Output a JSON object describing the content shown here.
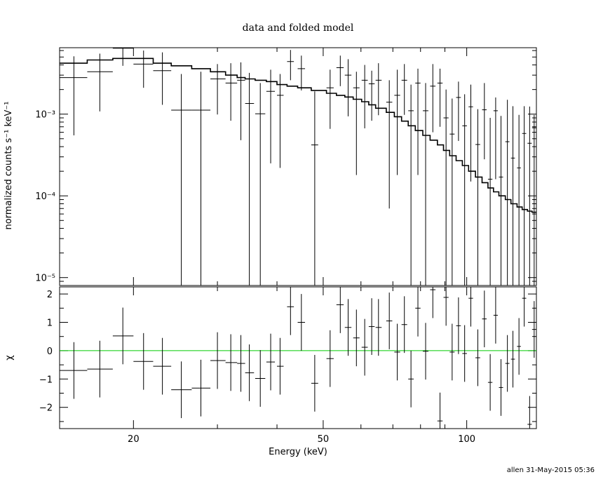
{
  "footer": "allen 31-May-2015 05:36",
  "chart_data": {
    "type": "line",
    "title": "data and folded model",
    "xlabel": "Energy (keV)",
    "x_scale": "log",
    "xlim": [
      14,
      140
    ],
    "x_ticks": [
      {
        "value": 20,
        "label": "20"
      },
      {
        "value": 50,
        "label": "50"
      },
      {
        "value": 100,
        "label": "100"
      }
    ],
    "panels": [
      {
        "name": "spectrum",
        "ylabel": "normalized counts s⁻¹ keV⁻¹",
        "y_scale": "log",
        "ylim": [
          8e-06,
          0.0065
        ],
        "y_ticks": [
          {
            "value": 1e-05,
            "label": "10⁻⁵"
          },
          {
            "value": 0.0001,
            "label": "10⁻⁴"
          },
          {
            "value": 0.001,
            "label": "10⁻³"
          }
        ],
        "data": [
          {
            "x": 15.0,
            "xlo": 14.0,
            "xhi": 16.0,
            "y": 0.0028,
            "ylo": 0.00055,
            "yhi": 0.0051
          },
          {
            "x": 17.0,
            "xlo": 16.0,
            "xhi": 18.1,
            "y": 0.0033,
            "ylo": 0.00108,
            "yhi": 0.0055
          },
          {
            "x": 19.0,
            "xlo": 18.1,
            "xhi": 20.0,
            "y": 0.0064,
            "ylo": 0.0039,
            "yhi": 0.0085
          },
          {
            "x": 21.0,
            "xlo": 20.0,
            "xhi": 22.0,
            "y": 0.0041,
            "ylo": 0.0021,
            "yhi": 0.006
          },
          {
            "x": 23.0,
            "xlo": 22.0,
            "xhi": 24.0,
            "y": 0.0034,
            "ylo": 0.0013,
            "yhi": 0.0057
          },
          {
            "x": 25.2,
            "xlo": 24.0,
            "xhi": 26.5,
            "y": 0.00112,
            "ylo": 1e-06,
            "yhi": 0.0031
          },
          {
            "x": 27.7,
            "xlo": 26.5,
            "xhi": 29.0,
            "y": 0.00112,
            "ylo": 1e-06,
            "yhi": 0.0033
          },
          {
            "x": 30.0,
            "xlo": 29.0,
            "xhi": 31.2,
            "y": 0.0027,
            "ylo": 0.00099,
            "yhi": 0.0041
          },
          {
            "x": 32.0,
            "xlo": 31.2,
            "xhi": 33.0,
            "y": 0.0024,
            "ylo": 0.00083,
            "yhi": 0.0042
          },
          {
            "x": 33.6,
            "xlo": 33.0,
            "xhi": 34.3,
            "y": 0.0026,
            "ylo": 0.00048,
            "yhi": 0.0043
          },
          {
            "x": 35.0,
            "xlo": 34.3,
            "xhi": 35.8,
            "y": 0.00135,
            "ylo": 1e-06,
            "yhi": 0.0032
          },
          {
            "x": 36.9,
            "xlo": 36.0,
            "xhi": 37.8,
            "y": 0.00101,
            "ylo": 1e-06,
            "yhi": 0.0024
          },
          {
            "x": 38.8,
            "xlo": 38.0,
            "xhi": 39.6,
            "y": 0.0019,
            "ylo": 0.00025,
            "yhi": 0.0035
          },
          {
            "x": 40.6,
            "xlo": 40.0,
            "xhi": 41.3,
            "y": 0.0017,
            "ylo": 0.00022,
            "yhi": 0.0031
          },
          {
            "x": 42.7,
            "xlo": 42.0,
            "xhi": 43.4,
            "y": 0.0044,
            "ylo": 0.0026,
            "yhi": 0.0061
          },
          {
            "x": 45.0,
            "xlo": 44.2,
            "xhi": 45.8,
            "y": 0.0036,
            "ylo": 0.00195,
            "yhi": 0.0052
          },
          {
            "x": 48.0,
            "xlo": 47.2,
            "xhi": 48.8,
            "y": 0.00042,
            "ylo": 1e-06,
            "yhi": 0.0019
          },
          {
            "x": 51.7,
            "xlo": 50.8,
            "xhi": 52.6,
            "y": 0.0021,
            "ylo": 0.00066,
            "yhi": 0.0035
          },
          {
            "x": 54.3,
            "xlo": 53.3,
            "xhi": 55.2,
            "y": 0.0037,
            "ylo": 0.0022,
            "yhi": 0.0052
          },
          {
            "x": 56.4,
            "xlo": 55.5,
            "xhi": 57.3,
            "y": 0.003,
            "ylo": 0.00094,
            "yhi": 0.0047
          },
          {
            "x": 58.7,
            "xlo": 57.8,
            "xhi": 59.6,
            "y": 0.0021,
            "ylo": 0.00018,
            "yhi": 0.0033
          },
          {
            "x": 61.1,
            "xlo": 60.2,
            "xhi": 62.0,
            "y": 0.0026,
            "ylo": 0.00067,
            "yhi": 0.004
          },
          {
            "x": 63.2,
            "xlo": 62.3,
            "xhi": 64.1,
            "y": 0.00235,
            "ylo": 0.00083,
            "yhi": 0.0034
          },
          {
            "x": 65.3,
            "xlo": 64.4,
            "xhi": 66.3,
            "y": 0.0026,
            "ylo": 0.00097,
            "yhi": 0.0042
          },
          {
            "x": 68.8,
            "xlo": 67.8,
            "xhi": 69.8,
            "y": 0.0014,
            "ylo": 7e-05,
            "yhi": 0.0026
          },
          {
            "x": 71.5,
            "xlo": 70.5,
            "xhi": 72.5,
            "y": 0.0017,
            "ylo": 0.00018,
            "yhi": 0.0035
          },
          {
            "x": 74.0,
            "xlo": 73.0,
            "xhi": 75.0,
            "y": 0.0026,
            "ylo": 0.00098,
            "yhi": 0.0041
          },
          {
            "x": 76.4,
            "xlo": 75.4,
            "xhi": 77.4,
            "y": 0.0011,
            "ylo": 1e-06,
            "yhi": 0.0023
          },
          {
            "x": 79.0,
            "xlo": 78.0,
            "xhi": 80.0,
            "y": 0.0024,
            "ylo": 0.00018,
            "yhi": 0.0036
          },
          {
            "x": 82.0,
            "xlo": 80.9,
            "xhi": 83.1,
            "y": 0.0011,
            "ylo": 1e-06,
            "yhi": 0.0024
          },
          {
            "x": 84.9,
            "xlo": 83.8,
            "xhi": 86.0,
            "y": 0.0022,
            "ylo": 0.0006,
            "yhi": 0.0041
          },
          {
            "x": 87.9,
            "xlo": 86.8,
            "xhi": 89.0,
            "y": 0.0024,
            "ylo": 0.0007,
            "yhi": 0.0036
          },
          {
            "x": 90.5,
            "xlo": 89.4,
            "xhi": 91.6,
            "y": 0.0009,
            "ylo": 1e-06,
            "yhi": 0.002
          },
          {
            "x": 93.2,
            "xlo": 92.1,
            "xhi": 94.3,
            "y": 0.00057,
            "ylo": 1e-06,
            "yhi": 0.00155
          },
          {
            "x": 96.1,
            "xlo": 95.0,
            "xhi": 97.2,
            "y": 0.0016,
            "ylo": 0.00047,
            "yhi": 0.0025
          },
          {
            "x": 99.0,
            "xlo": 97.9,
            "xhi": 100.1,
            "y": 0.00072,
            "ylo": 1e-06,
            "yhi": 0.00175
          },
          {
            "x": 102.0,
            "xlo": 100.9,
            "xhi": 103.1,
            "y": 0.00123,
            "ylo": 0.00015,
            "yhi": 0.0023
          },
          {
            "x": 105.5,
            "xlo": 104.3,
            "xhi": 106.7,
            "y": 0.000425,
            "ylo": 1e-06,
            "yhi": 0.00115
          },
          {
            "x": 108.9,
            "xlo": 107.7,
            "xhi": 110.1,
            "y": 0.00113,
            "ylo": 0.00028,
            "yhi": 0.0024
          },
          {
            "x": 112.0,
            "xlo": 110.8,
            "xhi": 113.2,
            "y": 0.00016,
            "ylo": 1e-06,
            "yhi": 0.0009
          },
          {
            "x": 115.0,
            "xlo": 113.8,
            "xhi": 116.2,
            "y": 0.0011,
            "ylo": 0.00016,
            "yhi": 0.0016
          },
          {
            "x": 118.0,
            "xlo": 116.8,
            "xhi": 119.2,
            "y": 0.00017,
            "ylo": 1e-06,
            "yhi": 0.00095
          },
          {
            "x": 121.7,
            "xlo": 120.5,
            "xhi": 122.9,
            "y": 0.00046,
            "ylo": 1e-06,
            "yhi": 0.0015
          },
          {
            "x": 125.0,
            "xlo": 123.8,
            "xhi": 126.2,
            "y": 0.00029,
            "ylo": 1e-06,
            "yhi": 0.00125
          },
          {
            "x": 128.7,
            "xlo": 127.5,
            "xhi": 129.9,
            "y": 0.00022,
            "ylo": 1e-06,
            "yhi": 0.00098
          },
          {
            "x": 132.0,
            "xlo": 130.7,
            "xhi": 133.3,
            "y": 0.00058,
            "ylo": 1e-06,
            "yhi": 0.00125
          },
          {
            "x": 135.5,
            "xlo": 134.1,
            "xhi": 136.9,
            "y": 0.00044,
            "ylo": 1e-06,
            "yhi": 0.00124
          },
          {
            "x": 138.5,
            "xlo": 137.1,
            "xhi": 139.9,
            "y": 0.00068,
            "ylo": 1e-06,
            "yhi": 0.00098
          }
        ],
        "model": {
          "name": "folded model",
          "edges": [
            14.0,
            16.0,
            18.1,
            20.0,
            22.0,
            24.0,
            26.5,
            29.0,
            31.2,
            33.0,
            34.3,
            36.0,
            38.0,
            40.0,
            42.0,
            44.2,
            47.2,
            50.8,
            53.3,
            55.5,
            57.8,
            60.2,
            62.3,
            64.4,
            67.8,
            70.5,
            73.0,
            75.4,
            78.0,
            80.9,
            83.8,
            86.8,
            89.4,
            92.1,
            95.0,
            97.9,
            100.9,
            104.3,
            107.7,
            110.8,
            113.8,
            116.8,
            120.5,
            123.8,
            127.5,
            130.7,
            134.1,
            137.1,
            140.0
          ],
          "values": [
            0.0042,
            0.0046,
            0.0048,
            0.0048,
            0.0042,
            0.0039,
            0.0036,
            0.0033,
            0.003,
            0.0028,
            0.0027,
            0.0026,
            0.0025,
            0.0023,
            0.0022,
            0.0021,
            0.00195,
            0.0018,
            0.0017,
            0.00162,
            0.00152,
            0.00142,
            0.0013,
            0.00118,
            0.00105,
            0.00093,
            0.00082,
            0.00072,
            0.00063,
            0.00055,
            0.00048,
            0.00042,
            0.00036,
            0.00031,
            0.00027,
            0.000235,
            0.0002,
            0.00017,
            0.000145,
            0.000125,
            0.000112,
            0.0001,
            9e-05,
            8e-05,
            7.3e-05,
            6.8e-05,
            6.5e-05,
            6.3e-05
          ]
        }
      },
      {
        "name": "residuals",
        "ylabel": "χ",
        "y_scale": "linear",
        "ylim": [
          -2.75,
          2.25
        ],
        "y_ticks": [
          {
            "value": -2,
            "label": "−2"
          },
          {
            "value": -1,
            "label": "−1"
          },
          {
            "value": 0,
            "label": "0"
          },
          {
            "value": 1,
            "label": "1"
          },
          {
            "value": 2,
            "label": "2"
          }
        ],
        "zero_line_color": "#00cc00",
        "data": [
          {
            "x": 15.0,
            "xlo": 14.0,
            "xhi": 16.0,
            "y": -0.7
          },
          {
            "x": 17.0,
            "xlo": 16.0,
            "xhi": 18.1,
            "y": -0.65
          },
          {
            "x": 19.0,
            "xlo": 18.1,
            "xhi": 20.0,
            "y": 0.52
          },
          {
            "x": 21.0,
            "xlo": 20.0,
            "xhi": 22.0,
            "y": -0.38
          },
          {
            "x": 23.0,
            "xlo": 22.0,
            "xhi": 24.0,
            "y": -0.55
          },
          {
            "x": 25.2,
            "xlo": 24.0,
            "xhi": 26.5,
            "y": -1.38
          },
          {
            "x": 27.7,
            "xlo": 26.5,
            "xhi": 29.0,
            "y": -1.32
          },
          {
            "x": 30.0,
            "xlo": 29.0,
            "xhi": 31.2,
            "y": -0.35
          },
          {
            "x": 32.0,
            "xlo": 31.2,
            "xhi": 33.0,
            "y": -0.42
          },
          {
            "x": 33.6,
            "xlo": 33.0,
            "xhi": 34.3,
            "y": -0.45
          },
          {
            "x": 35.0,
            "xlo": 34.3,
            "xhi": 35.8,
            "y": -0.78
          },
          {
            "x": 36.9,
            "xlo": 36.0,
            "xhi": 37.8,
            "y": -0.98
          },
          {
            "x": 38.8,
            "xlo": 38.0,
            "xhi": 39.6,
            "y": -0.4
          },
          {
            "x": 40.6,
            "xlo": 40.0,
            "xhi": 41.3,
            "y": -0.55
          },
          {
            "x": 42.7,
            "xlo": 42.0,
            "xhi": 43.4,
            "y": 1.55
          },
          {
            "x": 45.0,
            "xlo": 44.2,
            "xhi": 45.8,
            "y": 1.0
          },
          {
            "x": 48.0,
            "xlo": 47.2,
            "xhi": 48.8,
            "y": -1.15
          },
          {
            "x": 51.7,
            "xlo": 50.8,
            "xhi": 52.6,
            "y": -0.28
          },
          {
            "x": 54.3,
            "xlo": 53.3,
            "xhi": 55.2,
            "y": 1.62
          },
          {
            "x": 56.4,
            "xlo": 55.5,
            "xhi": 57.3,
            "y": 0.82
          },
          {
            "x": 58.7,
            "xlo": 57.8,
            "xhi": 59.6,
            "y": 0.45
          },
          {
            "x": 61.1,
            "xlo": 60.2,
            "xhi": 62.0,
            "y": 0.12
          },
          {
            "x": 63.2,
            "xlo": 62.3,
            "xhi": 64.1,
            "y": 0.85
          },
          {
            "x": 65.3,
            "xlo": 64.4,
            "xhi": 66.3,
            "y": 0.82
          },
          {
            "x": 68.8,
            "xlo": 67.8,
            "xhi": 69.8,
            "y": 1.05
          },
          {
            "x": 71.5,
            "xlo": 70.5,
            "xhi": 72.5,
            "y": -0.05
          },
          {
            "x": 74.0,
            "xlo": 73.0,
            "xhi": 75.0,
            "y": 0.92
          },
          {
            "x": 76.4,
            "xlo": 75.4,
            "xhi": 77.4,
            "y": -1.0
          },
          {
            "x": 79.0,
            "xlo": 78.0,
            "xhi": 80.0,
            "y": 1.5
          },
          {
            "x": 82.0,
            "xlo": 80.9,
            "xhi": 83.1,
            "y": -0.02
          },
          {
            "x": 84.9,
            "xlo": 83.8,
            "xhi": 86.0,
            "y": 2.15
          },
          {
            "x": 87.9,
            "xlo": 86.8,
            "xhi": 89.0,
            "y": -2.48
          },
          {
            "x": 90.5,
            "xlo": 89.4,
            "xhi": 91.6,
            "y": 1.88
          },
          {
            "x": 93.2,
            "xlo": 92.1,
            "xhi": 94.3,
            "y": -0.05
          },
          {
            "x": 96.1,
            "xlo": 95.0,
            "xhi": 97.2,
            "y": 0.88
          },
          {
            "x": 99.0,
            "xlo": 97.9,
            "xhi": 100.1,
            "y": -0.1
          },
          {
            "x": 102.0,
            "xlo": 100.9,
            "xhi": 103.1,
            "y": 1.85
          },
          {
            "x": 105.5,
            "xlo": 104.3,
            "xhi": 106.7,
            "y": -0.25
          },
          {
            "x": 108.9,
            "xlo": 107.7,
            "xhi": 110.1,
            "y": 1.12
          },
          {
            "x": 112.0,
            "xlo": 110.8,
            "xhi": 113.2,
            "y": -1.12
          },
          {
            "x": 115.0,
            "xlo": 113.8,
            "xhi": 116.2,
            "y": 1.25
          },
          {
            "x": 118.0,
            "xlo": 116.8,
            "xhi": 119.2,
            "y": -1.3
          },
          {
            "x": 121.7,
            "xlo": 120.5,
            "xhi": 122.9,
            "y": -0.45
          },
          {
            "x": 125.0,
            "xlo": 123.8,
            "xhi": 126.2,
            "y": -0.3
          },
          {
            "x": 128.7,
            "xlo": 127.5,
            "xhi": 129.9,
            "y": 0.15
          },
          {
            "x": 132.0,
            "xlo": 130.7,
            "xhi": 133.3,
            "y": 1.85
          },
          {
            "x": 135.5,
            "xlo": 134.1,
            "xhi": 136.9,
            "y": -2.6
          },
          {
            "x": 138.5,
            "xlo": 137.1,
            "xhi": 139.9,
            "y": 0.75
          }
        ]
      }
    ]
  }
}
